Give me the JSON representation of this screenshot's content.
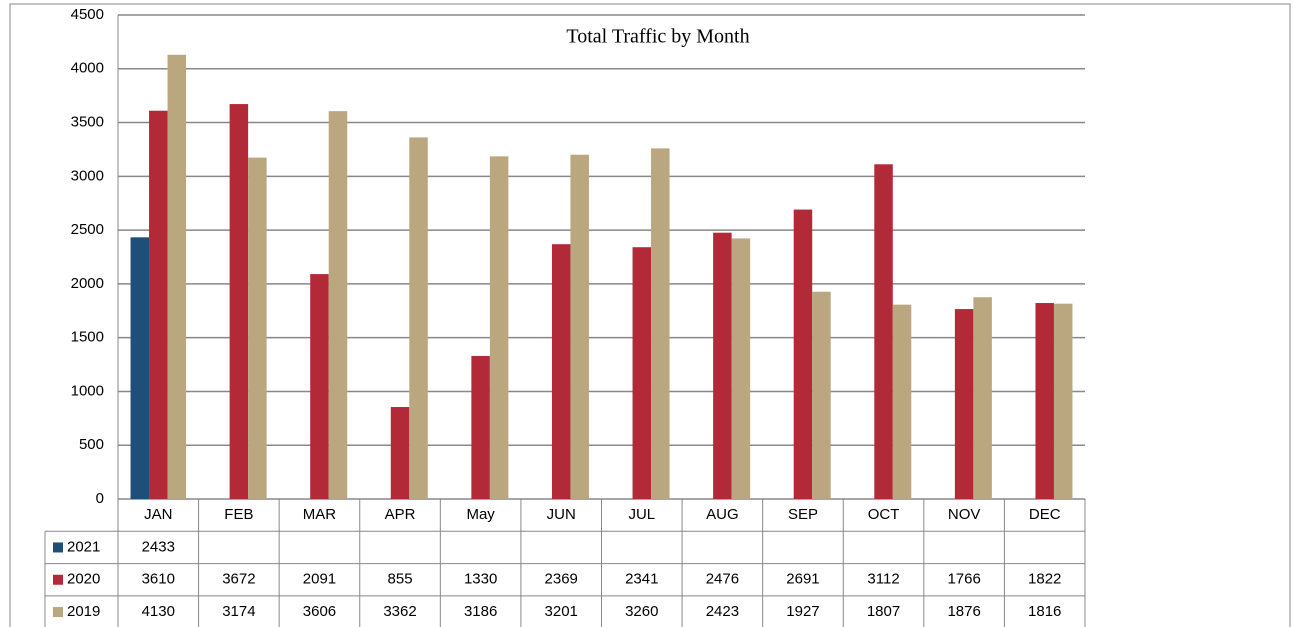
{
  "chart_data": {
    "type": "bar",
    "title": "Total Traffic by Month",
    "categories": [
      "JAN",
      "FEB",
      "MAR",
      "APR",
      "May",
      "JUN",
      "JUL",
      "AUG",
      "SEP",
      "OCT",
      "NOV",
      "DEC"
    ],
    "series": [
      {
        "name": "2021",
        "color": "#1f4e79",
        "values": [
          2433,
          null,
          null,
          null,
          null,
          null,
          null,
          null,
          null,
          null,
          null,
          null
        ]
      },
      {
        "name": "2020",
        "color": "#b22a37",
        "values": [
          3610,
          3672,
          2091,
          855,
          1330,
          2369,
          2341,
          2476,
          2691,
          3112,
          1766,
          1822
        ]
      },
      {
        "name": "2019",
        "color": "#bba77f",
        "values": [
          4130,
          3174,
          3606,
          3362,
          3186,
          3201,
          3260,
          2423,
          1927,
          1807,
          1876,
          1816
        ]
      }
    ],
    "ylim": [
      0,
      4500
    ],
    "yticks": [
      0,
      500,
      1000,
      1500,
      2000,
      2500,
      3000,
      3500,
      4000,
      4500
    ],
    "grid": true
  }
}
